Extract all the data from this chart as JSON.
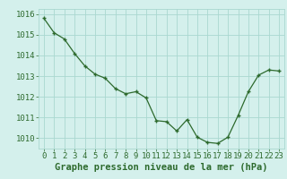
{
  "x": [
    0,
    1,
    2,
    3,
    4,
    5,
    6,
    7,
    8,
    9,
    10,
    11,
    12,
    13,
    14,
    15,
    16,
    17,
    18,
    19,
    20,
    21,
    22,
    23
  ],
  "y": [
    1015.8,
    1015.1,
    1014.8,
    1014.1,
    1013.5,
    1013.1,
    1012.9,
    1012.4,
    1012.15,
    1012.25,
    1011.95,
    1010.85,
    1010.8,
    1010.35,
    1010.9,
    1010.05,
    1009.8,
    1009.75,
    1010.05,
    1011.1,
    1012.25,
    1013.05,
    1013.3,
    1013.25
  ],
  "ylim": [
    1009.5,
    1016.25
  ],
  "yticks": [
    1010,
    1011,
    1012,
    1013,
    1014,
    1015,
    1016
  ],
  "xticks": [
    0,
    1,
    2,
    3,
    4,
    5,
    6,
    7,
    8,
    9,
    10,
    11,
    12,
    13,
    14,
    15,
    16,
    17,
    18,
    19,
    20,
    21,
    22,
    23
  ],
  "xlabel": "Graphe pression niveau de la mer (hPa)",
  "line_color": "#2d6a2d",
  "marker_color": "#2d6a2d",
  "bg_color": "#d4f0ec",
  "grid_color": "#aad8d0",
  "text_color": "#2d6a2d",
  "xlabel_fontsize": 7.5,
  "tick_fontsize": 6.5
}
